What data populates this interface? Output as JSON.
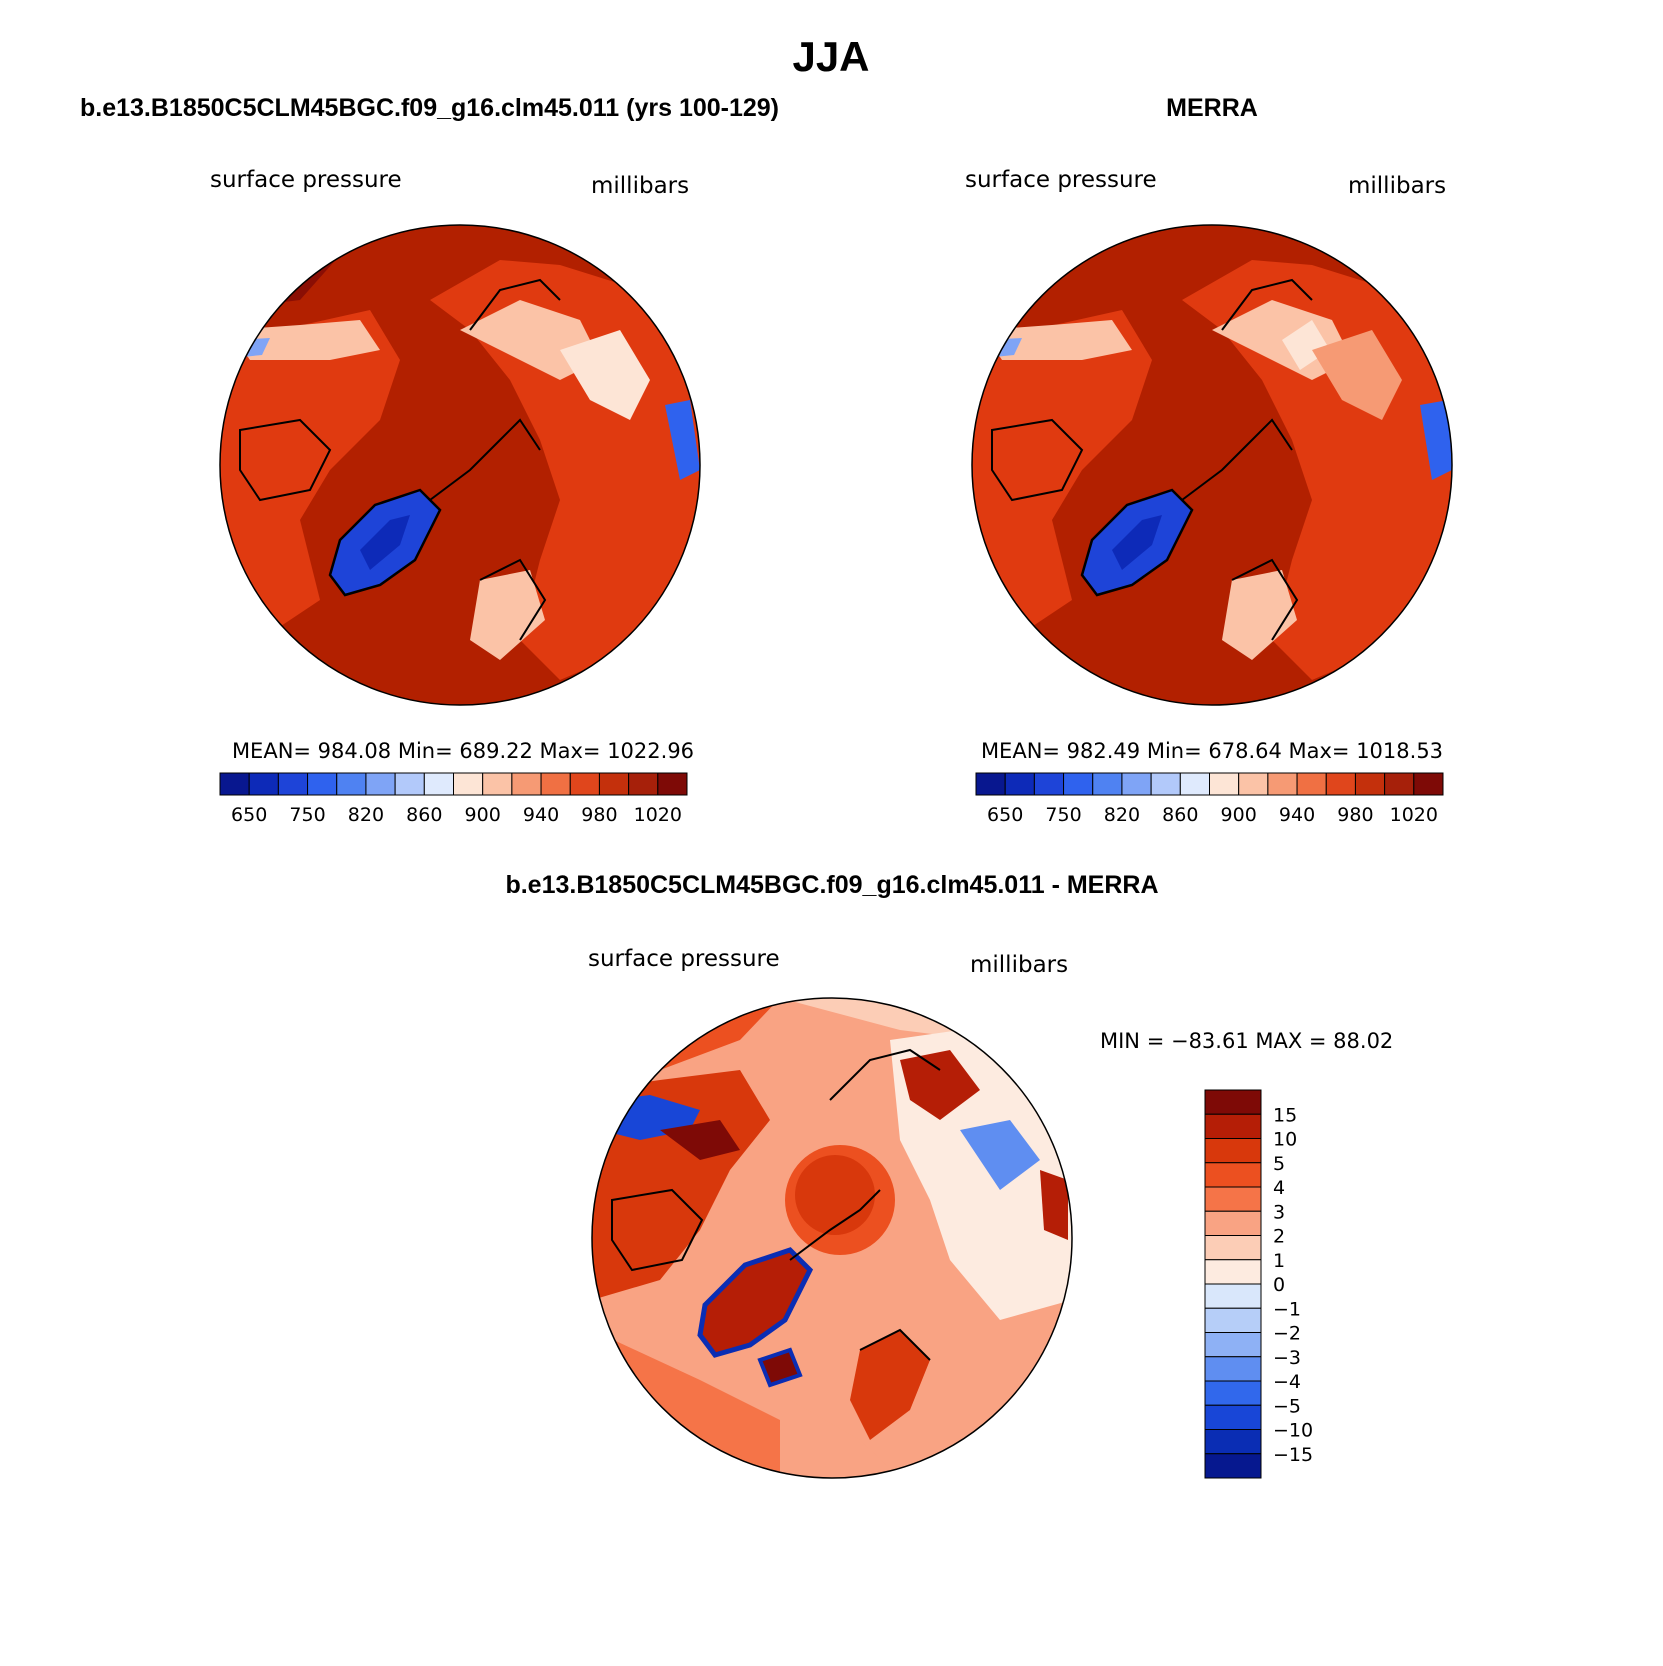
{
  "main_title": "JJA",
  "colors": {
    "ocean_red": "#b22000",
    "land_orange": "#e03a10",
    "ice_blue": "#1e55e6",
    "coast": "#000000"
  },
  "chart_data": [
    {
      "type": "heatmap",
      "projection": "north-polar-stereographic",
      "title": "b.e13.B1850C5CLM45BGC.f09_g16.clm45.011 (yrs 100-129)",
      "left_label": "surface pressure",
      "right_label": "millibars",
      "stats": {
        "mean": "984.08",
        "min": "689.22",
        "max": "1022.96"
      },
      "stats_text": "MEAN= 984.08   Min= 689.22   Max= 1022.96",
      "colorbar": {
        "orientation": "horizontal",
        "colors": [
          "#08178f",
          "#0d2ab8",
          "#1e44d8",
          "#2f62ee",
          "#4f82f2",
          "#7fa4f6",
          "#b2c9fa",
          "#dfeafd",
          "#fde5d6",
          "#fbc3a7",
          "#f69a74",
          "#f07043",
          "#e0461c",
          "#c4300c",
          "#a6200a",
          "#7e0a06"
        ],
        "tick_labels": [
          "650",
          "750",
          "820",
          "860",
          "900",
          "940",
          "980",
          "1020"
        ]
      }
    },
    {
      "type": "heatmap",
      "projection": "north-polar-stereographic",
      "title": "MERRA",
      "left_label": "surface pressure",
      "right_label": "millibars",
      "stats": {
        "mean": "982.49",
        "min": "678.64",
        "max": "1018.53"
      },
      "stats_text": "MEAN= 982.49   Min= 678.64   Max= 1018.53",
      "colorbar": {
        "orientation": "horizontal",
        "colors": [
          "#08178f",
          "#0d2ab8",
          "#1e44d8",
          "#2f62ee",
          "#4f82f2",
          "#7fa4f6",
          "#b2c9fa",
          "#dfeafd",
          "#fde5d6",
          "#fbc3a7",
          "#f69a74",
          "#f07043",
          "#e0461c",
          "#c4300c",
          "#a6200a",
          "#7e0a06"
        ],
        "tick_labels": [
          "650",
          "750",
          "820",
          "860",
          "900",
          "940",
          "980",
          "1020"
        ]
      }
    },
    {
      "type": "heatmap",
      "projection": "north-polar-stereographic",
      "title": "b.e13.B1850C5CLM45BGC.f09_g16.clm45.011 - MERRA",
      "left_label": "surface pressure",
      "right_label": "millibars",
      "stats": {
        "min": "−83.61",
        "max": "88.02"
      },
      "stats_text": "MIN = −83.61 MAX =  88.02",
      "colorbar": {
        "orientation": "vertical",
        "colors": [
          "#7e0a06",
          "#b51e06",
          "#d8380c",
          "#ec5020",
          "#f57448",
          "#f9a383",
          "#fccdb6",
          "#fdebe0",
          "#d9e7fb",
          "#b6cef8",
          "#8eb1f5",
          "#5f8ef1",
          "#3168ec",
          "#1846d7",
          "#0a2db4",
          "#06188f"
        ],
        "tick_labels": [
          "15",
          "10",
          "5",
          "4",
          "3",
          "2",
          "1",
          "0",
          "−1",
          "−2",
          "−3",
          "−4",
          "−5",
          "−10",
          "−15"
        ]
      }
    }
  ]
}
